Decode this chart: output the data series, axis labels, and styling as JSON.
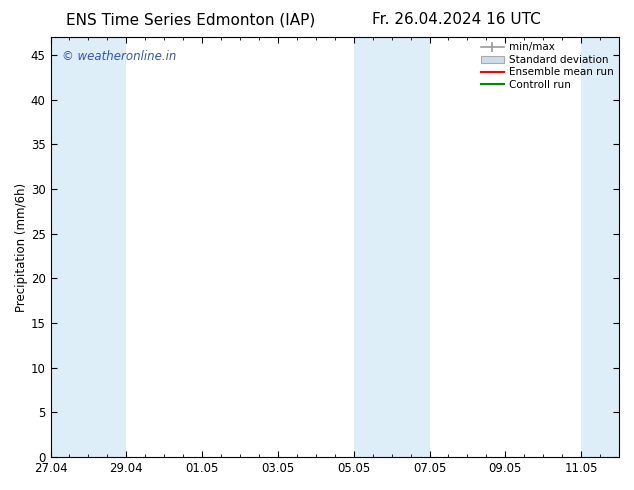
{
  "title_left": "ENS Time Series Edmonton (IAP)",
  "title_right": "Fr. 26.04.2024 16 UTC",
  "ylabel": "Precipitation (mm/6h)",
  "watermark": "© weatheronline.in",
  "watermark_color": "#3355bb",
  "background_color": "#ffffff",
  "plot_bg_color": "#ffffff",
  "ylim": [
    0,
    47
  ],
  "yticks": [
    0,
    5,
    10,
    15,
    20,
    25,
    30,
    35,
    40,
    45
  ],
  "xtick_labels": [
    "27.04",
    "29.04",
    "01.05",
    "03.05",
    "05.05",
    "07.05",
    "09.05",
    "11.05"
  ],
  "xtick_positions": [
    0,
    2,
    4,
    6,
    8,
    10,
    12,
    14
  ],
  "xlim": [
    0,
    15
  ],
  "shaded_bands": [
    {
      "x_start": 0,
      "x_end": 2,
      "color": "#ddeef8"
    },
    {
      "x_start": 8,
      "x_end": 10,
      "color": "#ddeef8"
    },
    {
      "x_start": 14,
      "x_end": 15,
      "color": "#ddeef8"
    }
  ],
  "legend_items": [
    {
      "label": "min/max",
      "color": "#aaaaaa",
      "style": "errorbar"
    },
    {
      "label": "Standard deviation",
      "color": "#ccdde8",
      "style": "box"
    },
    {
      "label": "Ensemble mean run",
      "color": "#ff0000",
      "style": "line"
    },
    {
      "label": "Controll run",
      "color": "#008800",
      "style": "line"
    }
  ],
  "title_fontsize": 11,
  "tick_fontsize": 8.5,
  "legend_fontsize": 7.5,
  "ylabel_fontsize": 8.5
}
